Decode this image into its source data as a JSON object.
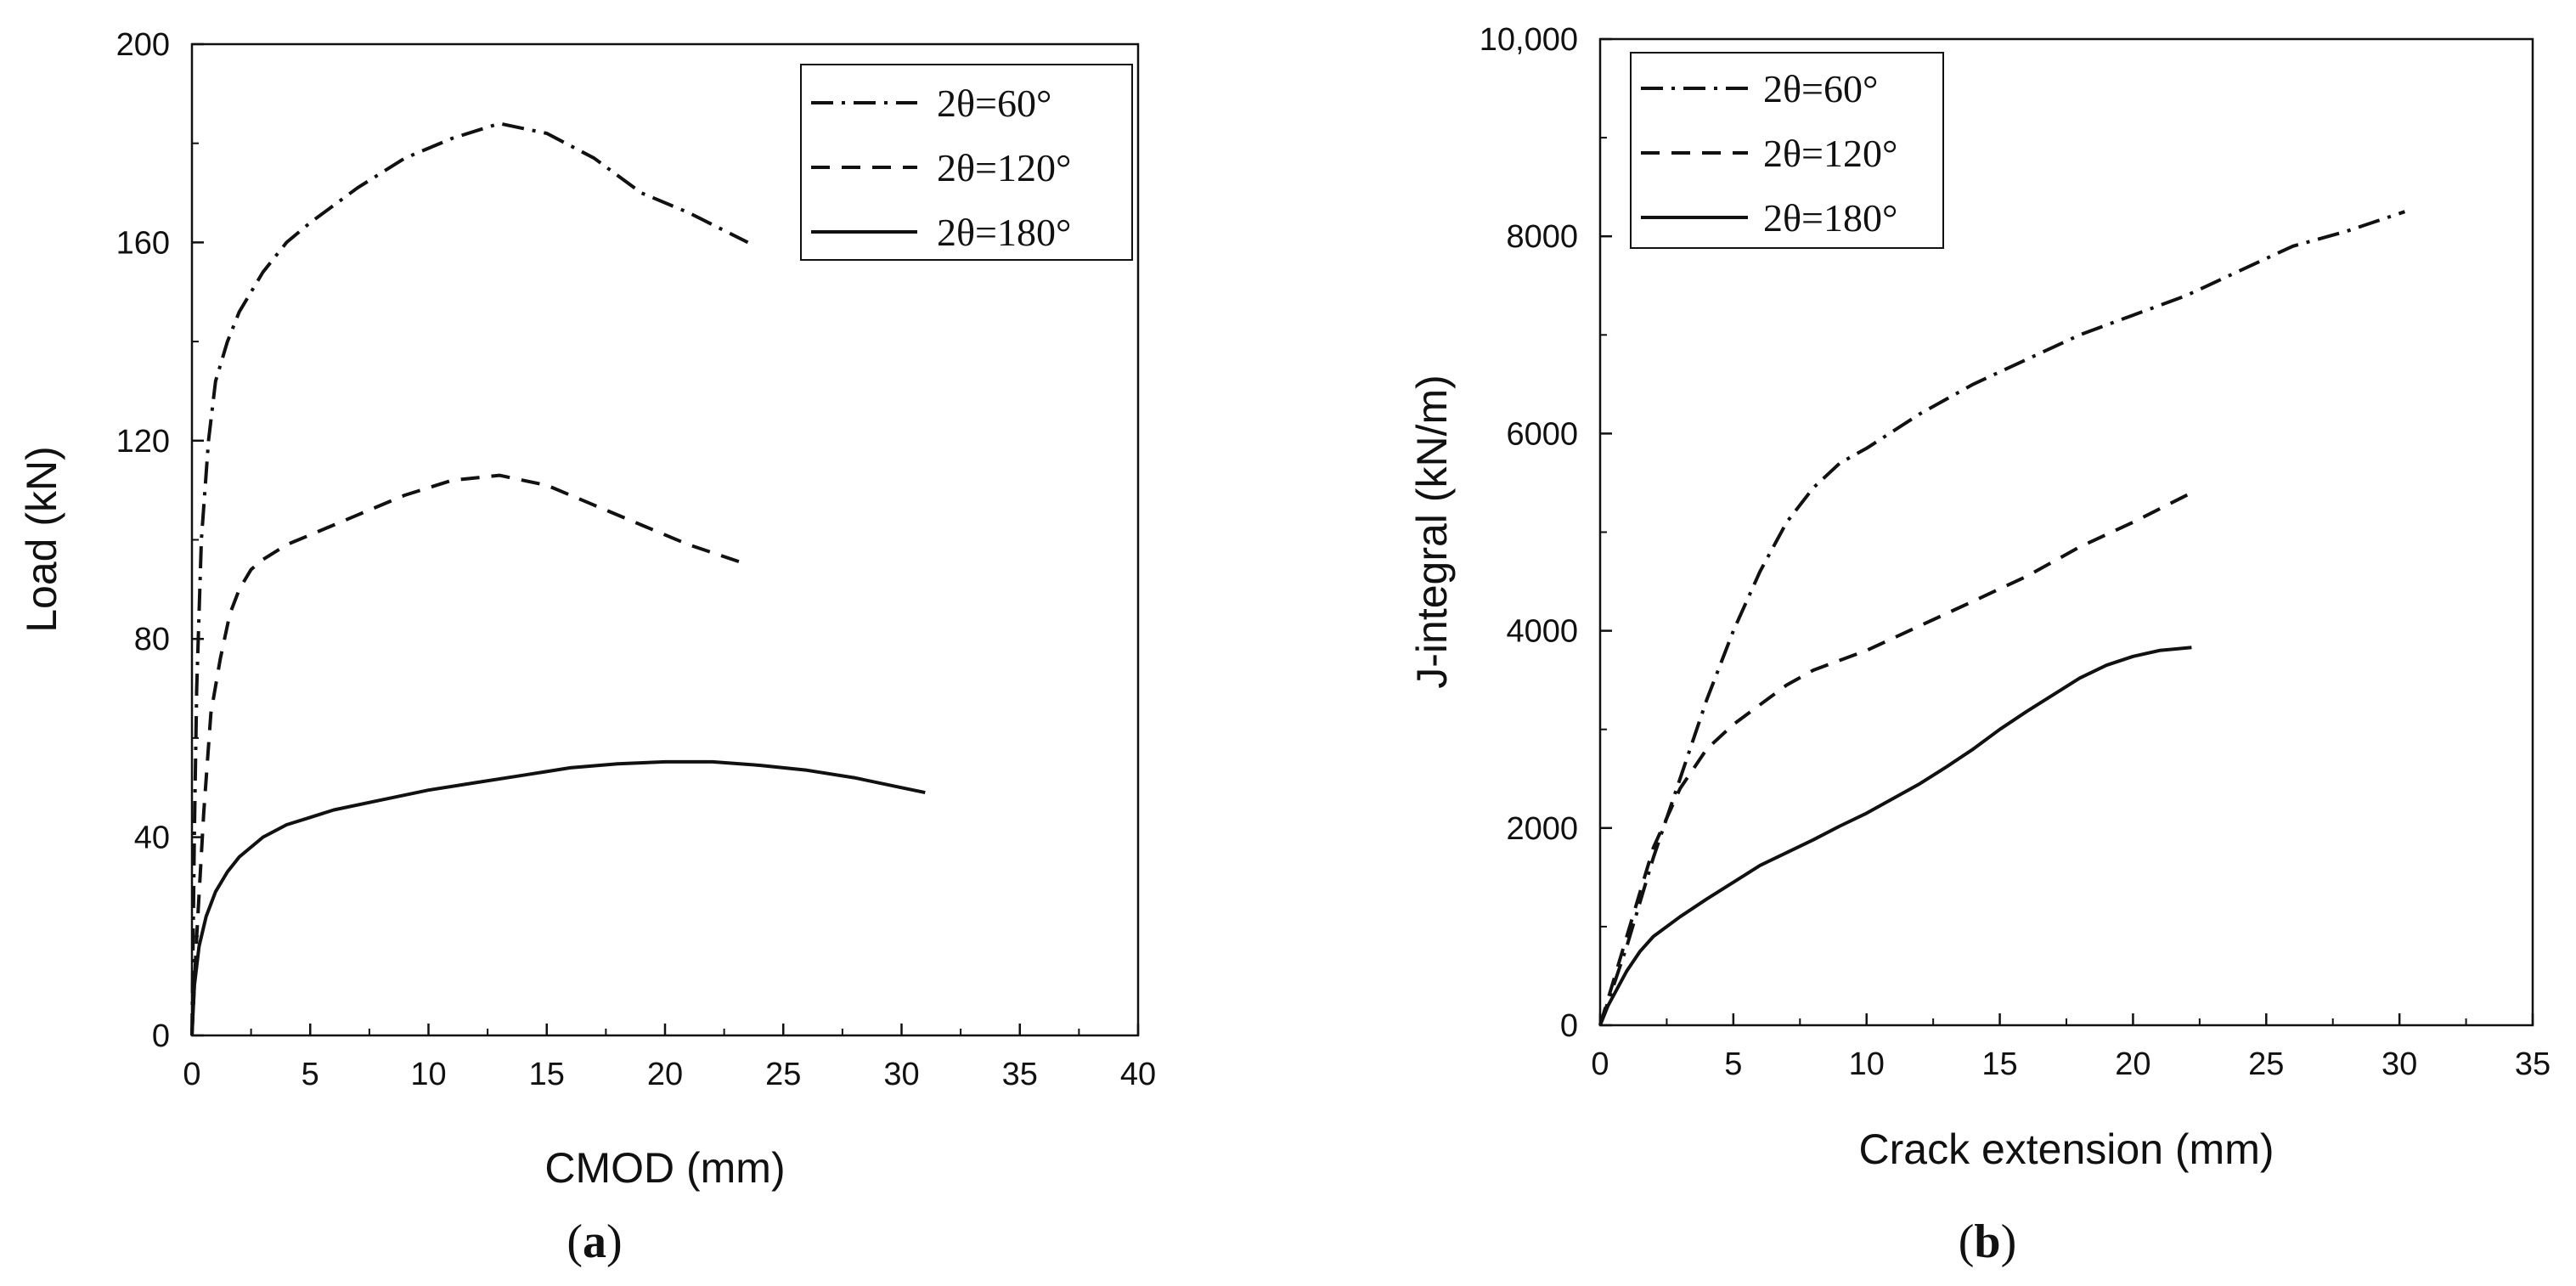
{
  "chart_data": [
    {
      "type": "line",
      "panel_label": {
        "open": "(",
        "letter": "a",
        "close": ")"
      },
      "xlabel": "CMOD (mm)",
      "ylabel": "Load (kN)",
      "xlim": [
        0,
        40
      ],
      "ylim": [
        0,
        200
      ],
      "xticks": [
        0,
        5,
        10,
        15,
        20,
        25,
        30,
        35,
        40
      ],
      "yticks": [
        0,
        40,
        80,
        120,
        160,
        200
      ],
      "xtick_labels": [
        "0",
        "5",
        "10",
        "15",
        "20",
        "25",
        "30",
        "35",
        "40"
      ],
      "ytick_labels": [
        "0",
        "40",
        "80",
        "120",
        "160",
        "200"
      ],
      "legend_position": "top-right",
      "series": [
        {
          "name": "2θ=60°",
          "style": "dash-dot",
          "x": [
            0,
            0.1,
            0.2,
            0.4,
            0.7,
            1,
            1.5,
            2,
            3,
            4,
            5,
            7,
            9,
            11,
            13,
            15,
            17,
            19,
            21,
            23.5
          ],
          "y": [
            0,
            40,
            70,
            100,
            120,
            132,
            140,
            146,
            154,
            160,
            164,
            171,
            177,
            181,
            184,
            182,
            177,
            170,
            166,
            160
          ]
        },
        {
          "name": "2θ=120°",
          "style": "dashed",
          "x": [
            0,
            0.2,
            0.5,
            0.8,
            1.2,
            1.6,
            2,
            2.5,
            3,
            4,
            5,
            7,
            9,
            11,
            13,
            15,
            17,
            19,
            21,
            23.5
          ],
          "y": [
            0,
            20,
            45,
            65,
            76,
            85,
            90,
            94,
            96,
            99,
            101,
            105,
            109,
            112,
            113,
            111,
            107,
            103,
            99,
            95
          ]
        },
        {
          "name": "2θ=180°",
          "style": "solid",
          "x": [
            0,
            0.1,
            0.3,
            0.6,
            1,
            1.5,
            2,
            3,
            4,
            5,
            6,
            8,
            10,
            12,
            14,
            16,
            18,
            20,
            22,
            24,
            26,
            28,
            30,
            31
          ],
          "y": [
            0,
            10,
            18,
            24,
            29,
            33,
            36,
            40,
            42.5,
            44,
            45.5,
            47.5,
            49.5,
            51,
            52.5,
            54,
            54.8,
            55.2,
            55.2,
            54.5,
            53.5,
            52,
            50,
            49
          ]
        }
      ]
    },
    {
      "type": "line",
      "panel_label": {
        "open": "(",
        "letter": "b",
        "close": ")"
      },
      "xlabel": "Crack extension (mm)",
      "ylabel": "J-integral (kN/m)",
      "xlim": [
        0,
        35
      ],
      "ylim": [
        0,
        10000
      ],
      "xticks": [
        0,
        5,
        10,
        15,
        20,
        25,
        30,
        35
      ],
      "yticks": [
        0,
        2000,
        4000,
        6000,
        8000,
        10000
      ],
      "xtick_labels": [
        "0",
        "5",
        "10",
        "15",
        "20",
        "25",
        "30",
        "35"
      ],
      "ytick_labels": [
        "0",
        "2000",
        "4000",
        "6000",
        "8000",
        "10,000"
      ],
      "legend_position": "top-left",
      "series": [
        {
          "name": "2θ=60°",
          "style": "dash-dot",
          "x": [
            0,
            0.5,
            1,
            2,
            3,
            4,
            5,
            6,
            7,
            8,
            9,
            10,
            12,
            14,
            16,
            18,
            20,
            22,
            24,
            26,
            28,
            30.2
          ],
          "y": [
            0,
            400,
            800,
            1700,
            2500,
            3300,
            4000,
            4600,
            5100,
            5450,
            5700,
            5850,
            6200,
            6500,
            6750,
            7000,
            7200,
            7400,
            7650,
            7900,
            8050,
            8250
          ]
        },
        {
          "name": "2θ=120°",
          "style": "dashed",
          "x": [
            0,
            0.5,
            1,
            2,
            3,
            4,
            5,
            6,
            7,
            8,
            10,
            12,
            14,
            16,
            18,
            20,
            22.2
          ],
          "y": [
            0,
            450,
            900,
            1800,
            2400,
            2800,
            3050,
            3250,
            3450,
            3600,
            3800,
            4050,
            4300,
            4550,
            4850,
            5100,
            5400
          ]
        },
        {
          "name": "2θ=180°",
          "style": "solid",
          "x": [
            0,
            0.3,
            0.6,
            1,
            1.5,
            2,
            3,
            4,
            5,
            6,
            7,
            8,
            9,
            10,
            11,
            12,
            13,
            14,
            15,
            16,
            17,
            18,
            19,
            20,
            21,
            22.2
          ],
          "y": [
            0,
            200,
            350,
            550,
            750,
            900,
            1100,
            1280,
            1450,
            1620,
            1750,
            1880,
            2020,
            2150,
            2300,
            2450,
            2620,
            2800,
            3000,
            3180,
            3350,
            3520,
            3650,
            3740,
            3800,
            3830
          ]
        }
      ]
    }
  ]
}
